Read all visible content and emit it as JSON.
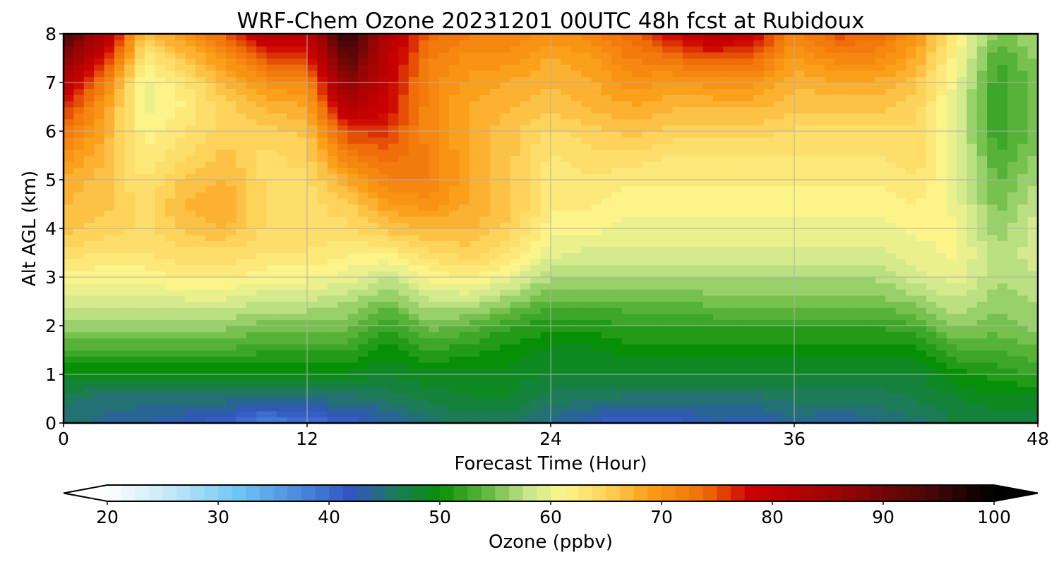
{
  "chart_data": {
    "type": "heatmap",
    "title": "WRF-Chem Ozone  20231201 00UTC 48h fcst at Rubidoux",
    "xlabel": "Forecast Time (Hour)",
    "ylabel": "Alt AGL (km)",
    "xlim": [
      0,
      48
    ],
    "ylim": [
      0,
      8
    ],
    "x_ticks": [
      "0",
      "12",
      "24",
      "36",
      "48"
    ],
    "y_ticks": [
      "0",
      "1",
      "2",
      "3",
      "4",
      "5",
      "6",
      "7",
      "8"
    ],
    "grid": true,
    "x_hours": [
      0,
      2,
      4,
      6,
      8,
      10,
      12,
      14,
      16,
      18,
      20,
      22,
      24,
      26,
      28,
      30,
      32,
      34,
      36,
      38,
      40,
      42,
      44,
      46,
      48
    ],
    "z_km": [
      0,
      0.5,
      1,
      1.5,
      2,
      2.5,
      3,
      3.5,
      4,
      4.5,
      5,
      5.5,
      6,
      6.5,
      7,
      7.5,
      8
    ],
    "ozone_ppbv": [
      [
        45,
        46,
        49,
        53,
        56,
        59,
        61,
        64,
        66,
        67,
        68,
        70,
        73,
        77,
        82,
        88,
        95
      ],
      [
        44,
        45,
        49,
        53,
        56,
        59,
        61,
        63,
        65,
        66,
        66,
        67,
        68,
        69,
        72,
        77,
        83
      ],
      [
        43,
        45,
        49,
        53,
        56,
        59,
        61,
        63,
        64,
        64,
        63,
        62,
        61,
        60,
        60,
        62,
        66
      ],
      [
        42,
        45,
        49,
        53,
        56,
        59,
        62,
        64,
        66,
        67,
        66,
        64,
        63,
        62,
        63,
        66,
        70
      ],
      [
        41,
        45,
        49,
        53,
        56,
        59,
        62,
        64,
        67,
        68,
        67,
        66,
        65,
        65,
        67,
        70,
        74
      ],
      [
        38,
        44,
        49,
        52,
        55,
        58,
        61,
        63,
        64,
        64,
        64,
        64,
        65,
        67,
        70,
        75,
        82
      ],
      [
        39,
        45,
        49,
        52,
        55,
        58,
        61,
        63,
        64,
        64,
        64,
        65,
        66,
        68,
        71,
        76,
        80
      ],
      [
        41,
        45,
        49,
        52,
        55,
        57,
        60,
        62,
        64,
        65,
        68,
        72,
        76,
        82,
        88,
        93,
        98
      ],
      [
        43,
        46,
        48,
        50,
        52,
        55,
        58,
        62,
        66,
        69,
        72,
        74,
        76,
        78,
        79,
        80,
        82
      ],
      [
        45,
        47,
        49,
        52,
        55,
        58,
        61,
        64,
        67,
        70,
        72,
        72,
        71,
        71,
        71,
        72,
        74
      ],
      [
        46,
        48,
        49,
        51,
        54,
        58,
        62,
        65,
        67,
        68,
        68,
        68,
        68,
        68,
        69,
        70,
        72
      ],
      [
        46,
        48,
        49,
        50,
        52,
        56,
        60,
        63,
        65,
        66,
        66,
        66,
        66,
        67,
        68,
        70,
        72
      ],
      [
        44,
        46,
        48,
        49,
        51,
        54,
        57,
        60,
        61,
        62,
        62,
        63,
        64,
        66,
        67,
        68,
        70
      ],
      [
        42,
        46,
        48,
        49,
        51,
        54,
        57,
        59,
        61,
        62,
        63,
        64,
        65,
        67,
        68,
        69,
        71
      ],
      [
        40,
        45,
        48,
        50,
        52,
        54,
        57,
        59,
        60,
        61,
        62,
        64,
        66,
        68,
        70,
        72,
        74
      ],
      [
        41,
        45,
        48,
        50,
        52,
        54,
        57,
        59,
        60,
        61,
        62,
        63,
        65,
        67,
        69,
        73,
        78
      ],
      [
        43,
        45,
        48,
        50,
        52,
        55,
        57,
        59,
        60,
        61,
        62,
        63,
        65,
        67,
        70,
        75,
        81
      ],
      [
        42,
        45,
        48,
        50,
        52,
        55,
        57,
        59,
        60,
        61,
        62,
        63,
        65,
        67,
        70,
        74,
        79
      ],
      [
        44,
        46,
        48,
        50,
        52,
        55,
        57,
        59,
        60,
        61,
        62,
        63,
        64,
        66,
        67,
        69,
        71
      ],
      [
        43,
        46,
        48,
        50,
        52,
        55,
        57,
        59,
        60,
        61,
        62,
        63,
        64,
        66,
        68,
        71,
        75
      ],
      [
        44,
        46,
        48,
        50,
        52,
        55,
        57,
        59,
        60,
        61,
        62,
        63,
        64,
        66,
        68,
        71,
        74
      ],
      [
        45,
        47,
        48,
        50,
        53,
        56,
        59,
        60,
        61,
        62,
        63,
        64,
        64,
        65,
        66,
        68,
        70
      ],
      [
        47,
        48,
        50,
        53,
        56,
        58,
        60,
        61,
        61,
        60,
        60,
        60,
        59,
        59,
        60,
        61,
        62
      ],
      [
        47,
        49,
        51,
        53,
        55,
        56,
        57,
        57,
        56,
        55,
        54,
        53,
        52,
        52,
        52,
        53,
        55
      ],
      [
        47,
        49,
        52,
        54,
        56,
        57,
        58,
        59,
        59,
        58,
        57,
        56,
        55,
        55,
        55,
        56,
        57
      ]
    ],
    "colorbar": {
      "label": "Ozone  (ppbv)",
      "min": 20,
      "max": 100,
      "extend": "both",
      "tick_labels": [
        "20",
        "30",
        "40",
        "50",
        "60",
        "70",
        "80",
        "90",
        "100"
      ],
      "color_stops": [
        {
          "value": 20,
          "color": "#ffffff"
        },
        {
          "value": 26,
          "color": "#bfe6f7"
        },
        {
          "value": 32,
          "color": "#6cc4f4"
        },
        {
          "value": 38,
          "color": "#4682d9"
        },
        {
          "value": 42,
          "color": "#3155c0"
        },
        {
          "value": 46,
          "color": "#1e7a5c"
        },
        {
          "value": 50,
          "color": "#079007"
        },
        {
          "value": 54,
          "color": "#5cb53b"
        },
        {
          "value": 58,
          "color": "#c7e68c"
        },
        {
          "value": 61,
          "color": "#fcf68c"
        },
        {
          "value": 65,
          "color": "#fdd35a"
        },
        {
          "value": 69,
          "color": "#fb9d16"
        },
        {
          "value": 74,
          "color": "#ef6b08"
        },
        {
          "value": 78,
          "color": "#cc0000"
        },
        {
          "value": 86,
          "color": "#9a0505"
        },
        {
          "value": 94,
          "color": "#4a0707"
        },
        {
          "value": 100,
          "color": "#000000"
        }
      ]
    }
  }
}
